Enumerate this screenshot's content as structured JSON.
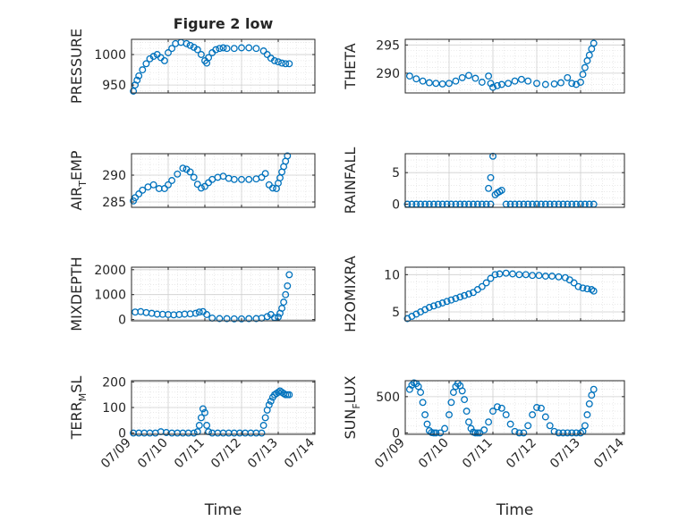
{
  "figure_title": "Figure 2 low",
  "colors": {
    "marker": "#0072BD",
    "grid": "#dcdcdc",
    "axis": "#262626"
  },
  "chart_data": [
    {
      "id": "pressure",
      "type": "scatter",
      "title": "Figure 2 low",
      "xlabel": "",
      "ylabel": "PRESSURE",
      "ylabel_sub": "",
      "xlim": [
        0,
        5
      ],
      "ylim": [
        937,
        1025
      ],
      "yticks": [
        950,
        1000
      ],
      "xticks": [
        0,
        1,
        2,
        3,
        4,
        5
      ],
      "xticklabels": [],
      "x": [
        0.05,
        0.1,
        0.15,
        0.2,
        0.3,
        0.4,
        0.5,
        0.6,
        0.7,
        0.8,
        0.9,
        1.0,
        1.1,
        1.2,
        1.35,
        1.5,
        1.6,
        1.7,
        1.8,
        1.9,
        2.0,
        2.05,
        2.1,
        2.2,
        2.3,
        2.4,
        2.5,
        2.6,
        2.8,
        3.0,
        3.2,
        3.4,
        3.6,
        3.7,
        3.8,
        3.9,
        4.0,
        4.1,
        4.2,
        4.3
      ],
      "y": [
        940,
        950,
        958,
        965,
        975,
        985,
        993,
        997,
        1000,
        995,
        990,
        1003,
        1010,
        1018,
        1020,
        1018,
        1015,
        1012,
        1008,
        1000,
        990,
        986,
        995,
        1003,
        1008,
        1010,
        1011,
        1010,
        1010,
        1011,
        1011,
        1010,
        1006,
        1000,
        994,
        990,
        988,
        986,
        985,
        985
      ]
    },
    {
      "id": "theta",
      "type": "scatter",
      "title": "",
      "xlabel": "",
      "ylabel": "THETA",
      "ylabel_sub": "",
      "xlim": [
        0,
        5
      ],
      "ylim": [
        286.5,
        296
      ],
      "yticks": [
        290,
        295
      ],
      "xticks": [
        0,
        1,
        2,
        3,
        4,
        5
      ],
      "xticklabels": [],
      "x": [
        0.1,
        0.25,
        0.4,
        0.55,
        0.7,
        0.85,
        1.0,
        1.15,
        1.3,
        1.45,
        1.6,
        1.75,
        1.9,
        1.95,
        2.0,
        2.1,
        2.2,
        2.35,
        2.5,
        2.65,
        2.8,
        3.0,
        3.2,
        3.4,
        3.55,
        3.7,
        3.8,
        3.9,
        4.0,
        4.05,
        4.1,
        4.15,
        4.2,
        4.25,
        4.3
      ],
      "y": [
        289.5,
        289,
        288.6,
        288.3,
        288.2,
        288.1,
        288.2,
        288.6,
        289.2,
        289.6,
        289.1,
        288.4,
        289.5,
        288.2,
        287.5,
        287.8,
        288,
        288.2,
        288.6,
        288.9,
        288.6,
        288.2,
        288.0,
        288.1,
        288.3,
        289.2,
        288.2,
        288.0,
        288.4,
        289.8,
        291,
        292.2,
        293.2,
        294.3,
        295.3
      ]
    },
    {
      "id": "air_temp",
      "type": "scatter",
      "title": "",
      "xlabel": "",
      "ylabel": "AIR",
      "ylabel_sub": "T",
      "ylabel_suffix": "EMP",
      "xlim": [
        0,
        5
      ],
      "ylim": [
        284,
        294
      ],
      "yticks": [
        285,
        290
      ],
      "xticks": [
        0,
        1,
        2,
        3,
        4,
        5
      ],
      "xticklabels": [],
      "x": [
        0.05,
        0.1,
        0.2,
        0.3,
        0.45,
        0.6,
        0.75,
        0.9,
        1.0,
        1.1,
        1.25,
        1.4,
        1.5,
        1.6,
        1.7,
        1.8,
        1.9,
        2.0,
        2.1,
        2.2,
        2.35,
        2.5,
        2.65,
        2.8,
        3.0,
        3.2,
        3.4,
        3.55,
        3.65,
        3.75,
        3.85,
        3.95,
        4.0,
        4.05,
        4.1,
        4.15,
        4.2,
        4.25
      ],
      "y": [
        285.2,
        285.8,
        286.5,
        287.2,
        287.8,
        288.2,
        287.5,
        287.5,
        288.2,
        289,
        290.2,
        291.3,
        291.1,
        290.6,
        289.6,
        288.3,
        287.6,
        287.9,
        288.6,
        289.2,
        289.6,
        289.8,
        289.4,
        289.2,
        289.2,
        289.2,
        289.3,
        289.6,
        290.3,
        288.2,
        287.6,
        287.5,
        288.5,
        289.5,
        290.6,
        291.6,
        292.6,
        293.6
      ]
    },
    {
      "id": "rainfall",
      "type": "scatter",
      "title": "",
      "xlabel": "",
      "ylabel": "RAINFALL",
      "ylabel_sub": "",
      "xlim": [
        0,
        5
      ],
      "ylim": [
        -0.5,
        8
      ],
      "yticks": [
        0,
        5
      ],
      "xticks": [
        0,
        1,
        2,
        3,
        4,
        5
      ],
      "xticklabels": [],
      "x": [
        0.05,
        0.15,
        0.25,
        0.35,
        0.45,
        0.55,
        0.65,
        0.75,
        0.85,
        0.95,
        1.05,
        1.15,
        1.25,
        1.35,
        1.45,
        1.55,
        1.65,
        1.75,
        1.85,
        1.95,
        1.9,
        1.95,
        2.0,
        2.05,
        2.1,
        2.15,
        2.2,
        2.3,
        2.4,
        2.5,
        2.6,
        2.7,
        2.8,
        2.9,
        3.0,
        3.1,
        3.2,
        3.3,
        3.4,
        3.5,
        3.6,
        3.7,
        3.8,
        3.9,
        4.0,
        4.1,
        4.2,
        4.3
      ],
      "y": [
        0,
        0,
        0,
        0,
        0,
        0,
        0,
        0,
        0,
        0,
        0,
        0,
        0,
        0,
        0,
        0,
        0,
        0,
        0,
        0,
        2.5,
        4.2,
        7.6,
        1.5,
        1.8,
        2.0,
        2.2,
        0,
        0,
        0,
        0,
        0,
        0,
        0,
        0,
        0,
        0,
        0,
        0,
        0,
        0,
        0,
        0,
        0,
        0,
        0,
        0,
        0
      ]
    },
    {
      "id": "mixdepth",
      "type": "scatter",
      "title": "",
      "xlabel": "",
      "ylabel": "MIXDEPTH",
      "ylabel_sub": "",
      "xlim": [
        0,
        5
      ],
      "ylim": [
        -50,
        2100
      ],
      "yticks": [
        0,
        1000,
        2000
      ],
      "xticks": [
        0,
        1,
        2,
        3,
        4,
        5
      ],
      "xticklabels": [],
      "x": [
        0.1,
        0.25,
        0.4,
        0.55,
        0.7,
        0.85,
        1.0,
        1.15,
        1.3,
        1.45,
        1.6,
        1.75,
        1.85,
        1.95,
        2.05,
        2.2,
        2.4,
        2.6,
        2.8,
        3.0,
        3.2,
        3.4,
        3.55,
        3.7,
        3.8,
        3.9,
        4.0,
        4.05,
        4.1,
        4.15,
        4.2,
        4.25,
        4.3
      ],
      "y": [
        300,
        320,
        280,
        250,
        220,
        210,
        200,
        190,
        200,
        220,
        230,
        250,
        300,
        320,
        200,
        60,
        40,
        35,
        30,
        30,
        35,
        40,
        60,
        120,
        200,
        80,
        100,
        250,
        450,
        700,
        1000,
        1350,
        1800
      ]
    },
    {
      "id": "h2omixra",
      "type": "scatter",
      "title": "",
      "xlabel": "",
      "ylabel": "H2OMIXRA",
      "ylabel_sub": "",
      "xlim": [
        0,
        5
      ],
      "ylim": [
        3.8,
        11
      ],
      "yticks": [
        5,
        10
      ],
      "xticks": [
        0,
        1,
        2,
        3,
        4,
        5
      ],
      "xticklabels": [],
      "x": [
        0.05,
        0.15,
        0.25,
        0.35,
        0.45,
        0.55,
        0.65,
        0.75,
        0.85,
        0.95,
        1.05,
        1.15,
        1.25,
        1.35,
        1.45,
        1.55,
        1.65,
        1.75,
        1.85,
        1.95,
        2.05,
        2.15,
        2.3,
        2.45,
        2.6,
        2.75,
        2.9,
        3.05,
        3.2,
        3.35,
        3.5,
        3.65,
        3.75,
        3.85,
        3.95,
        4.05,
        4.15,
        4.25,
        4.3
      ],
      "y": [
        4.1,
        4.4,
        4.7,
        5.0,
        5.3,
        5.6,
        5.8,
        6.0,
        6.2,
        6.4,
        6.6,
        6.8,
        7.0,
        7.2,
        7.4,
        7.6,
        8.0,
        8.4,
        8.9,
        9.5,
        10.0,
        10.1,
        10.2,
        10.1,
        10.0,
        10.0,
        9.9,
        9.9,
        9.8,
        9.8,
        9.7,
        9.6,
        9.3,
        8.9,
        8.4,
        8.2,
        8.1,
        8.0,
        7.8
      ]
    },
    {
      "id": "terr_msl",
      "type": "scatter",
      "title": "",
      "xlabel": "Time",
      "ylabel": "TERR",
      "ylabel_sub": "M",
      "ylabel_suffix": "SL",
      "xlim": [
        0,
        5
      ],
      "ylim": [
        -5,
        205
      ],
      "yticks": [
        0,
        100,
        200
      ],
      "xticks": [
        0,
        1,
        2,
        3,
        4,
        5
      ],
      "xticklabels": [
        "07/09",
        "07/10",
        "07/11",
        "07/12",
        "07/13",
        "07/14"
      ],
      "x": [
        0.05,
        0.2,
        0.35,
        0.5,
        0.65,
        0.8,
        0.95,
        1.1,
        1.25,
        1.4,
        1.55,
        1.7,
        1.8,
        1.85,
        1.9,
        1.95,
        2.0,
        2.05,
        2.1,
        2.2,
        2.35,
        2.5,
        2.65,
        2.8,
        2.95,
        3.1,
        3.25,
        3.4,
        3.55,
        3.6,
        3.65,
        3.7,
        3.75,
        3.8,
        3.85,
        3.9,
        3.95,
        4.0,
        4.05,
        4.1,
        4.15,
        4.2,
        4.25,
        4.3
      ],
      "y": [
        0,
        0,
        0,
        0,
        0,
        5,
        2,
        0,
        0,
        0,
        0,
        0,
        5,
        30,
        60,
        95,
        80,
        30,
        5,
        0,
        0,
        0,
        0,
        0,
        0,
        0,
        0,
        0,
        0,
        30,
        60,
        90,
        110,
        125,
        140,
        150,
        155,
        160,
        165,
        160,
        155,
        150,
        150,
        150
      ]
    },
    {
      "id": "sun_flux",
      "type": "scatter",
      "title": "",
      "xlabel": "Time",
      "ylabel": "SUN",
      "ylabel_sub": "F",
      "ylabel_suffix": "LUX",
      "xlim": [
        0,
        5
      ],
      "ylim": [
        -20,
        720
      ],
      "yticks": [
        0,
        500
      ],
      "xticks": [
        0,
        1,
        2,
        3,
        4,
        5
      ],
      "xticklabels": [
        "07/09",
        "07/10",
        "07/11",
        "07/12",
        "07/13",
        "07/14"
      ],
      "x": [
        0.1,
        0.15,
        0.2,
        0.25,
        0.3,
        0.35,
        0.4,
        0.45,
        0.5,
        0.55,
        0.6,
        0.65,
        0.7,
        0.8,
        0.9,
        1.0,
        1.05,
        1.1,
        1.15,
        1.2,
        1.25,
        1.3,
        1.35,
        1.4,
        1.45,
        1.5,
        1.55,
        1.6,
        1.65,
        1.7,
        1.8,
        1.9,
        2.0,
        2.1,
        2.2,
        2.3,
        2.4,
        2.5,
        2.6,
        2.7,
        2.8,
        2.9,
        3.0,
        3.1,
        3.2,
        3.3,
        3.4,
        3.5,
        3.6,
        3.7,
        3.8,
        3.9,
        4.0,
        4.05,
        4.1,
        4.15,
        4.2,
        4.25,
        4.3
      ],
      "y": [
        600,
        660,
        690,
        680,
        640,
        560,
        420,
        250,
        120,
        30,
        5,
        0,
        0,
        0,
        60,
        250,
        420,
        560,
        640,
        680,
        650,
        580,
        460,
        300,
        150,
        60,
        10,
        0,
        0,
        0,
        40,
        150,
        300,
        360,
        340,
        250,
        120,
        20,
        0,
        0,
        100,
        250,
        350,
        340,
        220,
        100,
        20,
        0,
        0,
        0,
        0,
        0,
        0,
        20,
        100,
        250,
        400,
        520,
        600
      ]
    }
  ]
}
